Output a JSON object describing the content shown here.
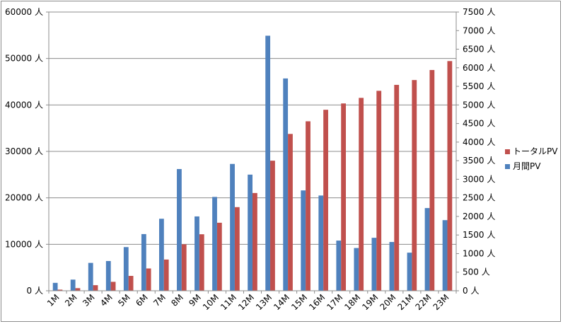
{
  "chart_data": {
    "type": "bar",
    "categories": [
      "1M",
      "2M",
      "3M",
      "4M",
      "5M",
      "6M",
      "7M",
      "8M",
      "9M",
      "10M",
      "11M",
      "12M",
      "13M",
      "14M",
      "15M",
      "16M",
      "17M",
      "18M",
      "19M",
      "20M",
      "21M",
      "22M",
      "23M"
    ],
    "series": [
      {
        "name": "月間PV",
        "axis": "left",
        "color": "#4f81bd",
        "values": [
          1700,
          2400,
          6000,
          6400,
          9400,
          12200,
          15500,
          26200,
          16000,
          20200,
          27300,
          25000,
          54900,
          45700,
          21600,
          20500,
          10800,
          9200,
          11400,
          10500,
          8200,
          17800,
          15200
        ]
      },
      {
        "name": "トータルPV",
        "axis": "right",
        "color": "#c0504d",
        "values": [
          30,
          70,
          150,
          240,
          400,
          600,
          840,
          1250,
          1520,
          1830,
          2250,
          2630,
          3500,
          4220,
          4560,
          4870,
          5040,
          5190,
          5380,
          5540,
          5670,
          5940,
          6180
        ]
      }
    ],
    "left_axis": {
      "ylim": [
        0,
        60000
      ],
      "ticks": [
        "0 人",
        "10000 人",
        "20000 人",
        "30000 人",
        "40000 人",
        "50000 人",
        "60000 人"
      ]
    },
    "right_axis": {
      "ylim": [
        0,
        7500
      ],
      "ticks": [
        "0 人",
        "500 人",
        "1000 人",
        "1500 人",
        "2000 人",
        "2500 人",
        "3000 人",
        "3500 人",
        "4000 人",
        "4500 人",
        "5000 人",
        "5500 人",
        "6000 人",
        "6500 人",
        "7000 人",
        "7500 人"
      ]
    },
    "grid": true,
    "legend_position": "right",
    "legend_order": [
      "トータルPV",
      "月間PV"
    ],
    "title": "",
    "xlabel": "",
    "ylabel": ""
  }
}
